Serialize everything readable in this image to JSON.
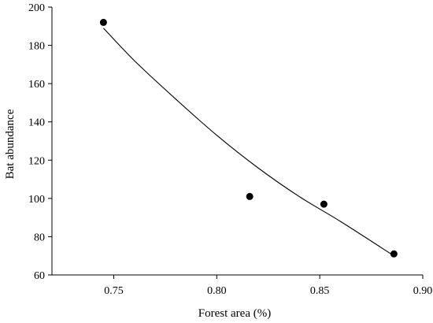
{
  "chart_data": {
    "type": "scatter",
    "title": "",
    "xlabel": "Forest area (%)",
    "ylabel": "Bat abundance",
    "xlim": [
      0.72,
      0.9
    ],
    "ylim": [
      60,
      200
    ],
    "xticks": [
      0.75,
      0.8,
      0.85,
      0.9
    ],
    "xtick_labels": [
      "0.75",
      "0.80",
      "0.85",
      "0.90"
    ],
    "yticks": [
      60,
      80,
      100,
      120,
      140,
      160,
      180,
      200
    ],
    "ytick_labels": [
      "60",
      "80",
      "100",
      "120",
      "140",
      "160",
      "180",
      "200"
    ],
    "grid": false,
    "legend": "none",
    "series": [
      {
        "type": "scatter",
        "x": [
          0.745,
          0.816,
          0.852,
          0.886
        ],
        "y": [
          192,
          101,
          97,
          71
        ]
      }
    ],
    "fit_curve": {
      "type": "exponential",
      "x": [
        0.745,
        0.76,
        0.78,
        0.8,
        0.82,
        0.84,
        0.86,
        0.886
      ],
      "y": [
        189,
        172,
        152,
        133,
        116,
        101,
        88,
        70
      ]
    }
  }
}
